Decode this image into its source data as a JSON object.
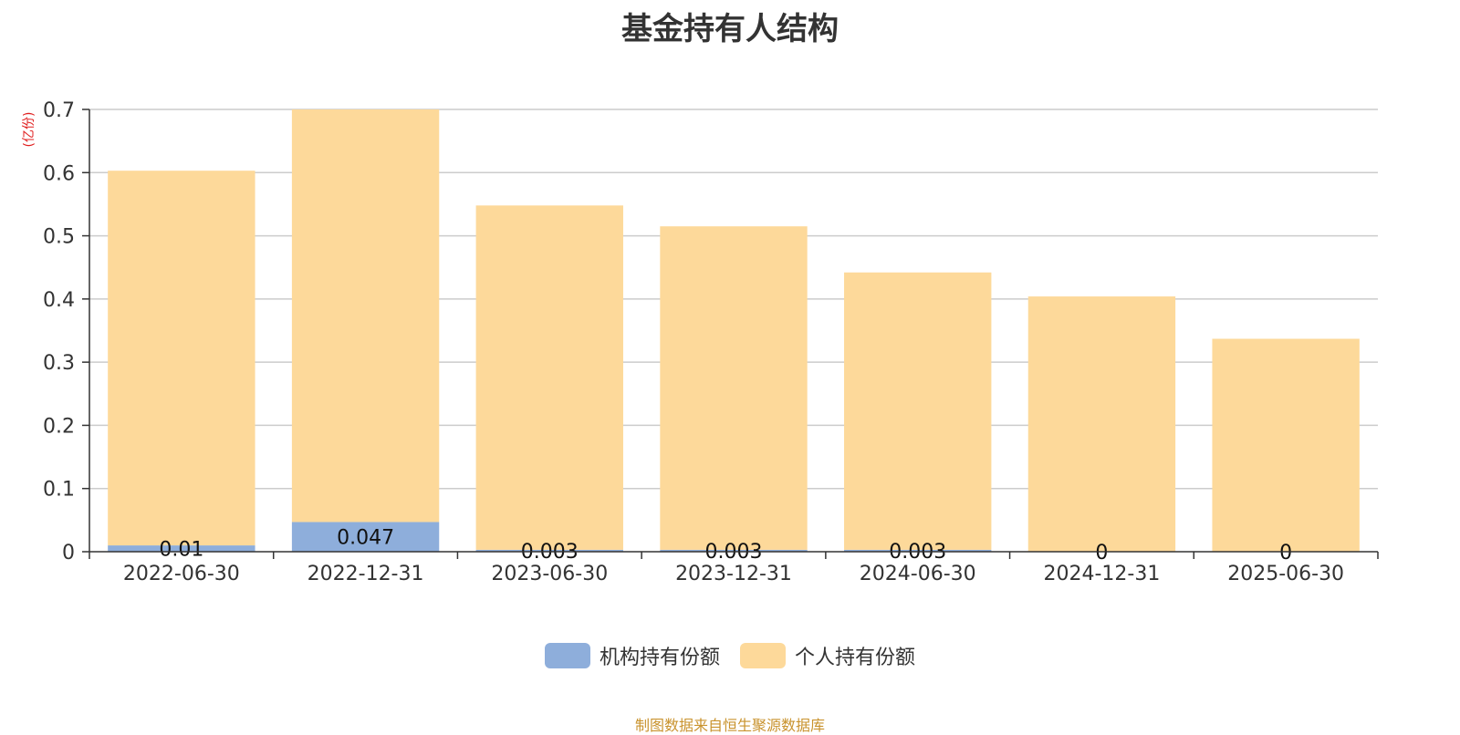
{
  "chart_data": {
    "type": "bar",
    "stacked": true,
    "title": "基金持有人结构",
    "unit_label": "(亿份)",
    "categories": [
      "2022-06-30",
      "2022-12-31",
      "2023-06-30",
      "2023-12-31",
      "2024-06-30",
      "2024-12-31",
      "2025-06-30"
    ],
    "series": [
      {
        "name": "机构持有份额",
        "color": "#8eaedb",
        "values": [
          0.01,
          0.047,
          0.003,
          0.003,
          0.003,
          0,
          0
        ],
        "labels": [
          "0.01",
          "0.047",
          "0.003",
          "0.003",
          "0.003",
          "0",
          "0"
        ]
      },
      {
        "name": "个人持有份额",
        "color": "#fdd99a",
        "values": [
          0.593,
          0.653,
          0.545,
          0.512,
          0.439,
          0.404,
          0.337
        ]
      }
    ],
    "yticks": [
      "0",
      "0.1",
      "0.2",
      "0.3",
      "0.4",
      "0.5",
      "0.6",
      "0.7"
    ],
    "ylim": [
      0,
      0.7
    ],
    "grid": true,
    "legend_position": "bottom"
  },
  "source_note": "制图数据来自恒生聚源数据库"
}
